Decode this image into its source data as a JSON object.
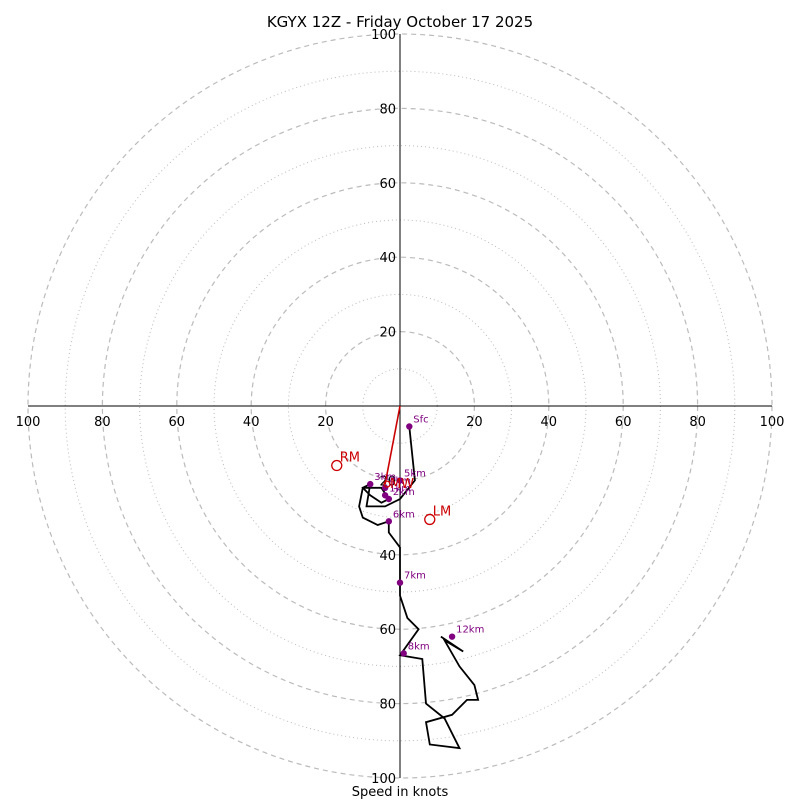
{
  "chart_data": {
    "type": "hodograph",
    "title": "KGYX 12Z - Friday October 17 2025",
    "xlabel": "Speed in knots",
    "axis_limit": 100,
    "ring_major": [
      20,
      40,
      60,
      80,
      100
    ],
    "ring_minor": [
      10,
      30,
      50,
      70,
      90
    ],
    "x_tick_labels": [
      "100",
      "80",
      "60",
      "40",
      "20",
      "20",
      "40",
      "60",
      "80",
      "100"
    ],
    "x_tick_values": [
      -100,
      -80,
      -60,
      -40,
      -20,
      20,
      40,
      60,
      80,
      100
    ],
    "y_tick_labels": [
      "100",
      "80",
      "60",
      "40",
      "20",
      "20",
      "40",
      "60",
      "80",
      "100"
    ],
    "y_tick_values": [
      100,
      80,
      60,
      40,
      20,
      -20,
      -40,
      -60,
      -80,
      -100
    ],
    "trace": [
      [
        2.5,
        -5.5
      ],
      [
        4,
        -20
      ],
      [
        0,
        -25
      ],
      [
        -4,
        -27
      ],
      [
        -9,
        -27
      ],
      [
        -8,
        -21
      ],
      [
        -10,
        -22
      ],
      [
        -8,
        -24
      ],
      [
        -5,
        -26
      ],
      [
        -3,
        -25
      ],
      [
        -5,
        -22
      ],
      [
        -10,
        -22
      ],
      [
        -11,
        -27
      ],
      [
        -10,
        -30
      ],
      [
        -6,
        -32
      ],
      [
        -3,
        -31
      ],
      [
        -3,
        -34
      ],
      [
        0,
        -38
      ],
      [
        0,
        -51
      ],
      [
        2,
        -57
      ],
      [
        5,
        -60
      ],
      [
        0,
        -67
      ],
      [
        6,
        -68
      ],
      [
        7,
        -80
      ],
      [
        12,
        -84
      ],
      [
        16,
        -92
      ],
      [
        8,
        -91
      ],
      [
        7,
        -85
      ],
      [
        14,
        -83
      ],
      [
        18,
        -79
      ],
      [
        21,
        -79
      ],
      [
        20,
        -75
      ],
      [
        16,
        -70
      ],
      [
        12,
        -63
      ],
      [
        17,
        -66
      ],
      [
        11,
        -62
      ]
    ],
    "height_markers": [
      {
        "label": "Sfc",
        "u": 2.5,
        "v": -5.5
      },
      {
        "label": "1km",
        "u": -4,
        "v": -24
      },
      {
        "label": "2km",
        "u": -3,
        "v": -25
      },
      {
        "label": "3km",
        "u": -8,
        "v": -21
      },
      {
        "label": "4km",
        "u": -4,
        "v": -22
      },
      {
        "label": "5km",
        "u": 0,
        "v": -20
      },
      {
        "label": "6km",
        "u": -3,
        "v": -31
      },
      {
        "label": "7km",
        "u": 0,
        "v": -47.5
      },
      {
        "label": "8km",
        "u": 1,
        "v": -66.5
      },
      {
        "label": "12km",
        "u": 14,
        "v": -62
      }
    ],
    "storm_motion": [
      {
        "label": "RM",
        "u": -17,
        "v": -16
      },
      {
        "label": "LM",
        "u": 8,
        "v": -30.5
      }
    ],
    "mean_wind": {
      "label": "MW",
      "u": -3.5,
      "v": -21
    },
    "shear_vector": {
      "u": -4,
      "v": -21
    },
    "colors": {
      "trace": "#000000",
      "height_marker": "#800080",
      "storm_motion": "#cc0000",
      "rings": "#bbbbbb",
      "axes": "#000000"
    }
  }
}
